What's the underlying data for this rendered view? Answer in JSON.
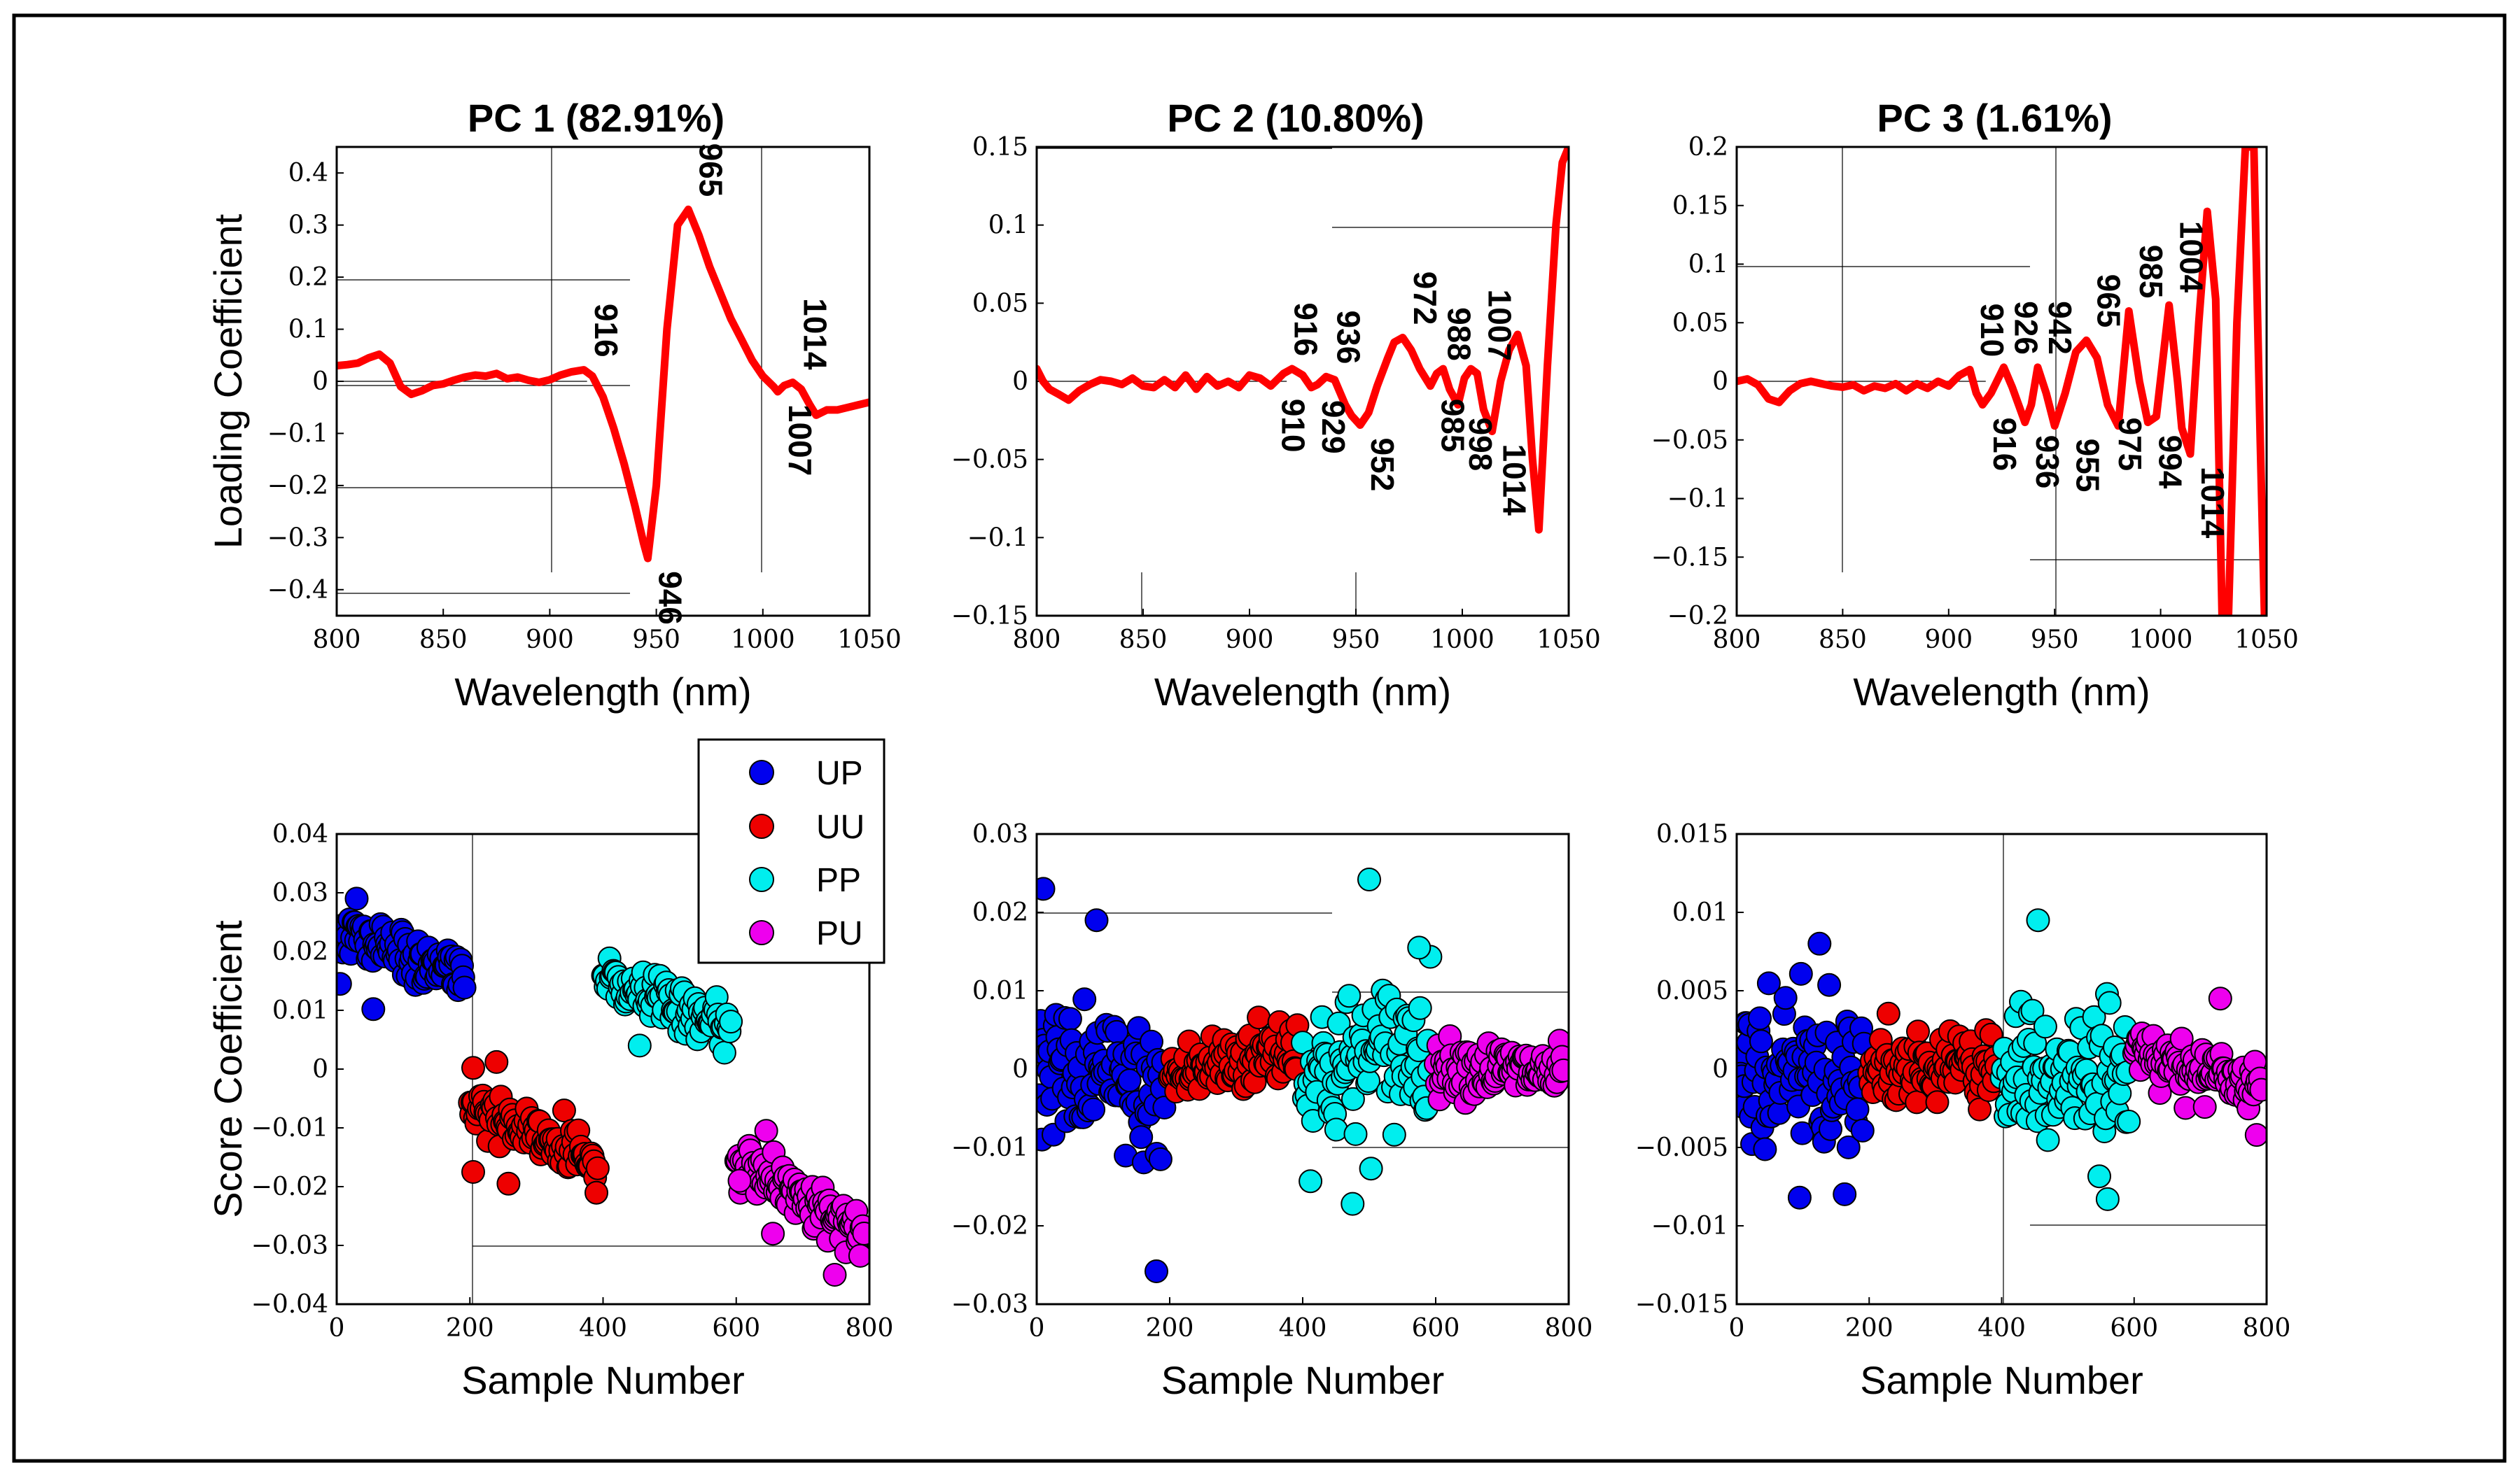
{
  "figure": {
    "colors": {
      "loading_line": "#ff0000",
      "frame": "#000000",
      "grid": "#000000"
    }
  },
  "legend": {
    "entries": [
      {
        "label": "UP",
        "color": "#0000ee"
      },
      {
        "label": "UU",
        "color": "#ee0000"
      },
      {
        "label": "PP",
        "color": "#00eeee"
      },
      {
        "label": "PU",
        "color": "#ee00ee"
      }
    ]
  },
  "chart_data": [
    {
      "type": "line",
      "title": "PC 1 (82.91%)",
      "xlabel": "Wavelength (nm)",
      "ylabel": "Loading Coefficient",
      "xlim": [
        800,
        1050
      ],
      "ylim": [
        -0.45,
        0.45
      ],
      "xticks": [
        800,
        850,
        900,
        950,
        1000,
        1050
      ],
      "yticks": [
        -0.4,
        -0.3,
        -0.2,
        -0.1,
        0,
        0.1,
        0.2,
        0.3,
        0.4
      ],
      "ytick_labels": [
        "−0.4",
        "−0.3",
        "−0.2",
        "−0.1",
        "0",
        "0.1",
        "0.2",
        "0.3",
        "0.4"
      ],
      "series": [
        {
          "name": "PC 1 loading",
          "x": [
            800,
            805,
            810,
            815,
            820,
            825,
            830,
            835,
            840,
            845,
            850,
            855,
            860,
            865,
            870,
            875,
            880,
            885,
            890,
            895,
            900,
            905,
            910,
            916,
            920,
            925,
            930,
            935,
            940,
            944,
            946,
            950,
            955,
            960,
            965,
            970,
            975,
            980,
            985,
            990,
            995,
            1000,
            1005,
            1007,
            1010,
            1014,
            1018,
            1022,
            1025,
            1030,
            1035,
            1040,
            1045,
            1050
          ],
          "y": [
            0.03,
            0.032,
            0.035,
            0.045,
            0.052,
            0.035,
            -0.01,
            -0.025,
            -0.018,
            -0.008,
            -0.005,
            0.002,
            0.008,
            0.012,
            0.01,
            0.015,
            0.005,
            0.008,
            0.002,
            -0.002,
            0.003,
            0.012,
            0.018,
            0.022,
            0.01,
            -0.03,
            -0.09,
            -0.16,
            -0.24,
            -0.31,
            -0.34,
            -0.2,
            0.1,
            0.3,
            0.33,
            0.28,
            0.22,
            0.17,
            0.12,
            0.08,
            0.04,
            0.01,
            -0.01,
            -0.02,
            -0.008,
            -0.002,
            -0.015,
            -0.045,
            -0.065,
            -0.055,
            -0.055,
            -0.05,
            -0.045,
            -0.04
          ]
        }
      ],
      "annotations": [
        {
          "text": "916",
          "x": 916,
          "y": 0.022,
          "pos": "above"
        },
        {
          "text": "946",
          "x": 946,
          "y": -0.34,
          "pos": "below"
        },
        {
          "text": "965",
          "x": 965,
          "y": 0.33,
          "pos": "above"
        },
        {
          "text": "1014",
          "x": 1014,
          "y": -0.002,
          "pos": "above"
        },
        {
          "text": "1007",
          "x": 1007,
          "y": -0.02,
          "pos": "below"
        }
      ]
    },
    {
      "type": "line",
      "title": "PC 2 (10.80%)",
      "xlabel": "Wavelength (nm)",
      "ylabel": "",
      "xlim": [
        800,
        1050
      ],
      "ylim": [
        -0.15,
        0.15
      ],
      "xticks": [
        800,
        850,
        900,
        950,
        1000,
        1050
      ],
      "yticks": [
        -0.15,
        -0.1,
        -0.05,
        0,
        0.05,
        0.1,
        0.15
      ],
      "ytick_labels": [
        "−0.15",
        "−0.1",
        "−0.05",
        "0",
        "0.05",
        "0.1",
        "0.15"
      ],
      "series": [
        {
          "name": "PC 2 loading",
          "x": [
            800,
            803,
            806,
            810,
            815,
            820,
            825,
            830,
            835,
            840,
            845,
            850,
            855,
            860,
            865,
            870,
            875,
            880,
            885,
            890,
            895,
            900,
            905,
            910,
            916,
            920,
            925,
            929,
            932,
            936,
            940,
            945,
            948,
            952,
            956,
            960,
            965,
            968,
            972,
            976,
            980,
            985,
            988,
            991,
            994,
            998,
            1001,
            1004,
            1007,
            1010,
            1014,
            1018,
            1022,
            1026,
            1030,
            1033,
            1036,
            1040,
            1044,
            1047,
            1050
          ],
          "y": [
            0.008,
            0.0,
            -0.005,
            -0.008,
            -0.012,
            -0.006,
            -0.002,
            0.001,
            0.0,
            -0.002,
            0.002,
            -0.003,
            -0.004,
            0.001,
            -0.004,
            0.004,
            -0.005,
            0.003,
            -0.003,
            0.0,
            -0.004,
            0.004,
            0.002,
            -0.003,
            0.005,
            0.008,
            0.004,
            -0.004,
            -0.002,
            0.003,
            0.001,
            -0.015,
            -0.022,
            -0.028,
            -0.02,
            -0.003,
            0.015,
            0.025,
            0.028,
            0.02,
            0.008,
            -0.003,
            0.005,
            0.008,
            -0.005,
            -0.015,
            0.002,
            0.008,
            0.005,
            -0.018,
            -0.032,
            0.0,
            0.02,
            0.03,
            0.01,
            -0.05,
            -0.095,
            0.01,
            0.1,
            0.14,
            0.15
          ]
        }
      ],
      "annotations": [
        {
          "text": "916",
          "x": 916,
          "y": 0.008,
          "pos": "above"
        },
        {
          "text": "910",
          "x": 910,
          "y": -0.003,
          "pos": "below"
        },
        {
          "text": "936",
          "x": 936,
          "y": 0.003,
          "pos": "above"
        },
        {
          "text": "929",
          "x": 929,
          "y": -0.004,
          "pos": "below"
        },
        {
          "text": "952",
          "x": 952,
          "y": -0.028,
          "pos": "below"
        },
        {
          "text": "972",
          "x": 972,
          "y": 0.028,
          "pos": "above"
        },
        {
          "text": "988",
          "x": 988,
          "y": 0.005,
          "pos": "above"
        },
        {
          "text": "985",
          "x": 985,
          "y": -0.003,
          "pos": "below"
        },
        {
          "text": "998",
          "x": 998,
          "y": -0.015,
          "pos": "below"
        },
        {
          "text": "1007",
          "x": 1007,
          "y": 0.005,
          "pos": "above"
        },
        {
          "text": "1014",
          "x": 1014,
          "y": -0.032,
          "pos": "below"
        }
      ]
    },
    {
      "type": "line",
      "title": "PC 3 (1.61%)",
      "xlabel": "Wavelength (nm)",
      "ylabel": "",
      "xlim": [
        800,
        1050
      ],
      "ylim": [
        -0.2,
        0.2
      ],
      "xticks": [
        800,
        850,
        900,
        950,
        1000,
        1050
      ],
      "yticks": [
        -0.2,
        -0.15,
        -0.1,
        -0.05,
        0,
        0.05,
        0.1,
        0.15,
        0.2
      ],
      "ytick_labels": [
        "−0.2",
        "−0.15",
        "−0.1",
        "−0.05",
        "0",
        "0.05",
        "0.1",
        "0.15",
        "0.2"
      ],
      "series": [
        {
          "name": "PC 3 loading",
          "x": [
            800,
            805,
            810,
            815,
            820,
            825,
            830,
            835,
            840,
            845,
            850,
            855,
            860,
            865,
            870,
            875,
            880,
            885,
            890,
            895,
            900,
            905,
            910,
            913,
            916,
            920,
            926,
            930,
            936,
            939,
            942,
            946,
            950,
            955,
            960,
            965,
            970,
            975,
            980,
            985,
            990,
            994,
            998,
            1004,
            1008,
            1010,
            1014,
            1018,
            1022,
            1026,
            1029,
            1032,
            1036,
            1040,
            1044,
            1047,
            1049,
            1050
          ],
          "y": [
            0.0,
            0.002,
            -0.003,
            -0.015,
            -0.018,
            -0.008,
            -0.002,
            0.0,
            -0.002,
            -0.004,
            -0.005,
            -0.003,
            -0.008,
            -0.004,
            -0.006,
            -0.002,
            -0.008,
            -0.002,
            -0.006,
            0.0,
            -0.004,
            0.005,
            0.01,
            -0.01,
            -0.02,
            -0.01,
            0.012,
            -0.005,
            -0.035,
            -0.02,
            0.012,
            -0.01,
            -0.038,
            -0.01,
            0.025,
            0.035,
            0.02,
            -0.02,
            -0.038,
            0.06,
            0.0,
            -0.035,
            -0.03,
            0.065,
            0.0,
            -0.04,
            -0.062,
            0.05,
            0.145,
            0.07,
            -0.2,
            -0.2,
            0.05,
            0.2,
            0.2,
            -0.05,
            -0.2,
            -0.2
          ]
        }
      ],
      "annotations": [
        {
          "text": "910",
          "x": 910,
          "y": 0.01,
          "pos": "above"
        },
        {
          "text": "926",
          "x": 926,
          "y": 0.012,
          "pos": "above"
        },
        {
          "text": "942",
          "x": 942,
          "y": 0.012,
          "pos": "above"
        },
        {
          "text": "965",
          "x": 965,
          "y": 0.035,
          "pos": "above"
        },
        {
          "text": "985",
          "x": 985,
          "y": 0.06,
          "pos": "above"
        },
        {
          "text": "1004",
          "x": 1004,
          "y": 0.065,
          "pos": "above"
        },
        {
          "text": "916",
          "x": 916,
          "y": -0.02,
          "pos": "below"
        },
        {
          "text": "936",
          "x": 936,
          "y": -0.035,
          "pos": "below"
        },
        {
          "text": "955",
          "x": 955,
          "y": -0.038,
          "pos": "below"
        },
        {
          "text": "975",
          "x": 975,
          "y": -0.02,
          "pos": "below"
        },
        {
          "text": "994",
          "x": 994,
          "y": -0.035,
          "pos": "below"
        },
        {
          "text": "1014",
          "x": 1014,
          "y": -0.062,
          "pos": "below"
        }
      ]
    },
    {
      "type": "scatter",
      "title": "",
      "xlabel": "Sample Number",
      "ylabel": "Score Coefficient",
      "xlim": [
        0,
        800
      ],
      "ylim": [
        -0.04,
        0.04
      ],
      "xticks": [
        0,
        200,
        400,
        600,
        800
      ],
      "yticks": [
        -0.04,
        -0.03,
        -0.02,
        -0.01,
        0,
        0.01,
        0.02,
        0.03,
        0.04
      ],
      "ytick_labels": [
        "−0.04",
        "−0.03",
        "−0.02",
        "−0.01",
        "0",
        "0.01",
        "0.02",
        "0.03",
        "0.04"
      ],
      "groups": [
        {
          "name": "UP",
          "color": "#0000ee",
          "x_range": [
            0,
            200
          ],
          "trend": [
            0.024,
            0.016
          ],
          "spread": 0.004
        },
        {
          "name": "UU",
          "color": "#ee0000",
          "x_range": [
            200,
            400
          ],
          "trend": [
            -0.006,
            -0.016
          ],
          "spread": 0.004
        },
        {
          "name": "PP",
          "color": "#00eeee",
          "x_range": [
            400,
            600
          ],
          "trend": [
            0.016,
            0.007
          ],
          "spread": 0.004
        },
        {
          "name": "PU",
          "color": "#ee00ee",
          "x_range": [
            600,
            800
          ],
          "trend": [
            -0.015,
            -0.028
          ],
          "spread": 0.004
        }
      ],
      "outliers": [
        {
          "x": 5,
          "y": 0.0145,
          "group": "UP"
        },
        {
          "x": 55,
          "y": 0.0102,
          "group": "UP"
        },
        {
          "x": 30,
          "y": 0.029,
          "group": "UP"
        },
        {
          "x": 205,
          "y": -0.0175,
          "group": "UU"
        },
        {
          "x": 258,
          "y": -0.0195,
          "group": "UU"
        },
        {
          "x": 205,
          "y": 0.0002,
          "group": "UU"
        },
        {
          "x": 240,
          "y": 0.0012,
          "group": "UU"
        },
        {
          "x": 455,
          "y": 0.004,
          "group": "PP"
        },
        {
          "x": 605,
          "y": -0.019,
          "group": "PU"
        },
        {
          "x": 645,
          "y": -0.0105,
          "group": "PU"
        },
        {
          "x": 655,
          "y": -0.028,
          "group": "PU"
        },
        {
          "x": 748,
          "y": -0.035,
          "group": "PU"
        }
      ]
    },
    {
      "type": "scatter",
      "title": "",
      "xlabel": "Sample Number",
      "ylabel": "",
      "xlim": [
        0,
        800
      ],
      "ylim": [
        -0.03,
        0.03
      ],
      "xticks": [
        0,
        200,
        400,
        600,
        800
      ],
      "yticks": [
        -0.03,
        -0.02,
        -0.01,
        0,
        0.01,
        0.02,
        0.03
      ],
      "ytick_labels": [
        "−0.03",
        "−0.02",
        "−0.01",
        "0",
        "0.01",
        "0.02",
        "0.03"
      ],
      "groups": [
        {
          "name": "UP",
          "color": "#0000ee",
          "x_range": [
            0,
            200
          ],
          "trend": [
            0.002,
            -0.004
          ],
          "spread": 0.0085
        },
        {
          "name": "UU",
          "color": "#ee0000",
          "x_range": [
            200,
            400
          ],
          "trend": [
            -0.001,
            0.003
          ],
          "spread": 0.0045
        },
        {
          "name": "PP",
          "color": "#00eeee",
          "x_range": [
            400,
            600
          ],
          "trend": [
            -0.001,
            0.003
          ],
          "spread": 0.0095
        },
        {
          "name": "PU",
          "color": "#ee00ee",
          "x_range": [
            600,
            800
          ],
          "trend": [
            0.0005,
            -0.0005
          ],
          "spread": 0.0035
        }
      ],
      "outliers": [
        {
          "x": 10,
          "y": 0.023,
          "group": "UP"
        },
        {
          "x": 90,
          "y": 0.019,
          "group": "UP"
        },
        {
          "x": 180,
          "y": -0.0258,
          "group": "UP"
        },
        {
          "x": 500,
          "y": 0.0242,
          "group": "PP"
        },
        {
          "x": 475,
          "y": -0.0172,
          "group": "PP"
        },
        {
          "x": 575,
          "y": 0.0155,
          "group": "PP"
        }
      ]
    },
    {
      "type": "scatter",
      "title": "",
      "xlabel": "Sample Number",
      "ylabel": "",
      "xlim": [
        0,
        800
      ],
      "ylim": [
        -0.015,
        0.015
      ],
      "xticks": [
        0,
        200,
        400,
        600,
        800
      ],
      "yticks": [
        -0.015,
        -0.01,
        -0.005,
        0,
        0.005,
        0.01,
        0.015
      ],
      "ytick_labels": [
        "−0.015",
        "−0.01",
        "−0.005",
        "0",
        "0.005",
        "0.01",
        "0.015"
      ],
      "groups": [
        {
          "name": "UP",
          "color": "#0000ee",
          "x_range": [
            0,
            200
          ],
          "trend": [
            0.0,
            -0.0005
          ],
          "spread": 0.0045
        },
        {
          "name": "UU",
          "color": "#ee0000",
          "x_range": [
            200,
            400
          ],
          "trend": [
            0.0,
            0.0005
          ],
          "spread": 0.0022
        },
        {
          "name": "PP",
          "color": "#00eeee",
          "x_range": [
            400,
            600
          ],
          "trend": [
            0.0,
            -0.0005
          ],
          "spread": 0.004
        },
        {
          "name": "PU",
          "color": "#ee00ee",
          "x_range": [
            600,
            800
          ],
          "trend": [
            0.0012,
            -0.0012
          ],
          "spread": 0.0015
        }
      ],
      "outliers": [
        {
          "x": 125,
          "y": 0.008,
          "group": "UP"
        },
        {
          "x": 95,
          "y": -0.0082,
          "group": "UP"
        },
        {
          "x": 455,
          "y": 0.0095,
          "group": "PP"
        },
        {
          "x": 560,
          "y": -0.0083,
          "group": "PP"
        },
        {
          "x": 730,
          "y": 0.0045,
          "group": "PU"
        },
        {
          "x": 785,
          "y": -0.0042,
          "group": "PU"
        }
      ]
    }
  ]
}
